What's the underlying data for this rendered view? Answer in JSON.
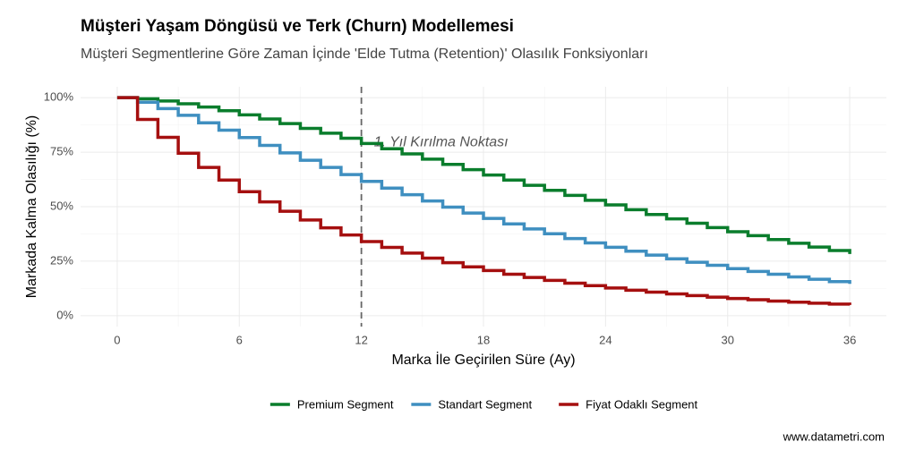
{
  "chart_data": {
    "type": "step",
    "title": "Müşteri Yaşam Döngüsü ve Terk (Churn) Modellemesi",
    "subtitle": "Müşteri Segmentlerine Göre Zaman İçinde 'Elde Tutma (Retention)' Olasılık Fonksiyonları",
    "x_label": "Marka İle Geçirilen Süre (Ay)",
    "y_label": "Markada Kalma Olasılığı (%)",
    "caption": "www.datametri.com",
    "annotation": "1. Yıl Kırılma Noktası",
    "vline": 12,
    "x": [
      0,
      1,
      2,
      3,
      4,
      5,
      6,
      7,
      8,
      9,
      10,
      11,
      12,
      13,
      14,
      15,
      16,
      17,
      18,
      19,
      20,
      21,
      22,
      23,
      24,
      25,
      26,
      27,
      28,
      29,
      30,
      31,
      32,
      33,
      34,
      35,
      36
    ],
    "series": [
      {
        "name": "Premium Segment",
        "color": "#0a7d2c",
        "values": [
          100,
          99.5,
          98.5,
          97.2,
          95.7,
          94.0,
          92.1,
          90.2,
          88.1,
          85.9,
          83.7,
          81.4,
          79.0,
          76.6,
          74.2,
          71.8,
          69.4,
          67.0,
          64.5,
          62.2,
          59.8,
          57.5,
          55.2,
          52.9,
          50.8,
          48.6,
          46.4,
          44.4,
          42.4,
          40.4,
          38.5,
          36.7,
          34.9,
          33.2,
          31.5,
          29.9,
          28.3
        ]
      },
      {
        "name": "Standart Segment",
        "color": "#3f8fc0",
        "values": [
          100,
          97.9,
          95.0,
          91.9,
          88.5,
          85.1,
          81.7,
          78.1,
          74.7,
          71.3,
          68.0,
          64.7,
          61.6,
          58.5,
          55.5,
          52.6,
          49.8,
          47.1,
          44.6,
          42.1,
          39.8,
          37.6,
          35.4,
          33.4,
          31.4,
          29.6,
          27.8,
          26.1,
          24.5,
          23.1,
          21.6,
          20.3,
          19.0,
          17.8,
          16.7,
          15.6,
          14.6
        ]
      },
      {
        "name": "Fiyat Odaklı Segment",
        "color": "#a50f0f",
        "values": [
          100,
          90.0,
          81.8,
          74.5,
          68.0,
          62.2,
          56.9,
          52.2,
          47.9,
          43.9,
          40.3,
          37.0,
          34.0,
          31.3,
          28.7,
          26.4,
          24.3,
          22.4,
          20.7,
          19.0,
          17.5,
          16.2,
          14.9,
          13.8,
          12.7,
          11.7,
          10.8,
          10.0,
          9.2,
          8.5,
          7.9,
          7.3,
          6.7,
          6.2,
          5.7,
          5.3,
          4.9
        ]
      }
    ],
    "xlim": [
      -1.8,
      37.8
    ],
    "xticks": [
      0,
      6,
      12,
      18,
      24,
      30,
      36
    ],
    "ylim": [
      -5,
      105
    ],
    "yticks": [
      {
        "value": 0,
        "label": "0%"
      },
      {
        "value": 25,
        "label": "25%"
      },
      {
        "value": 50,
        "label": "50%"
      },
      {
        "value": 75,
        "label": "75%"
      },
      {
        "value": 100,
        "label": "100%"
      }
    ],
    "grid": true,
    "legend": "bottom"
  }
}
